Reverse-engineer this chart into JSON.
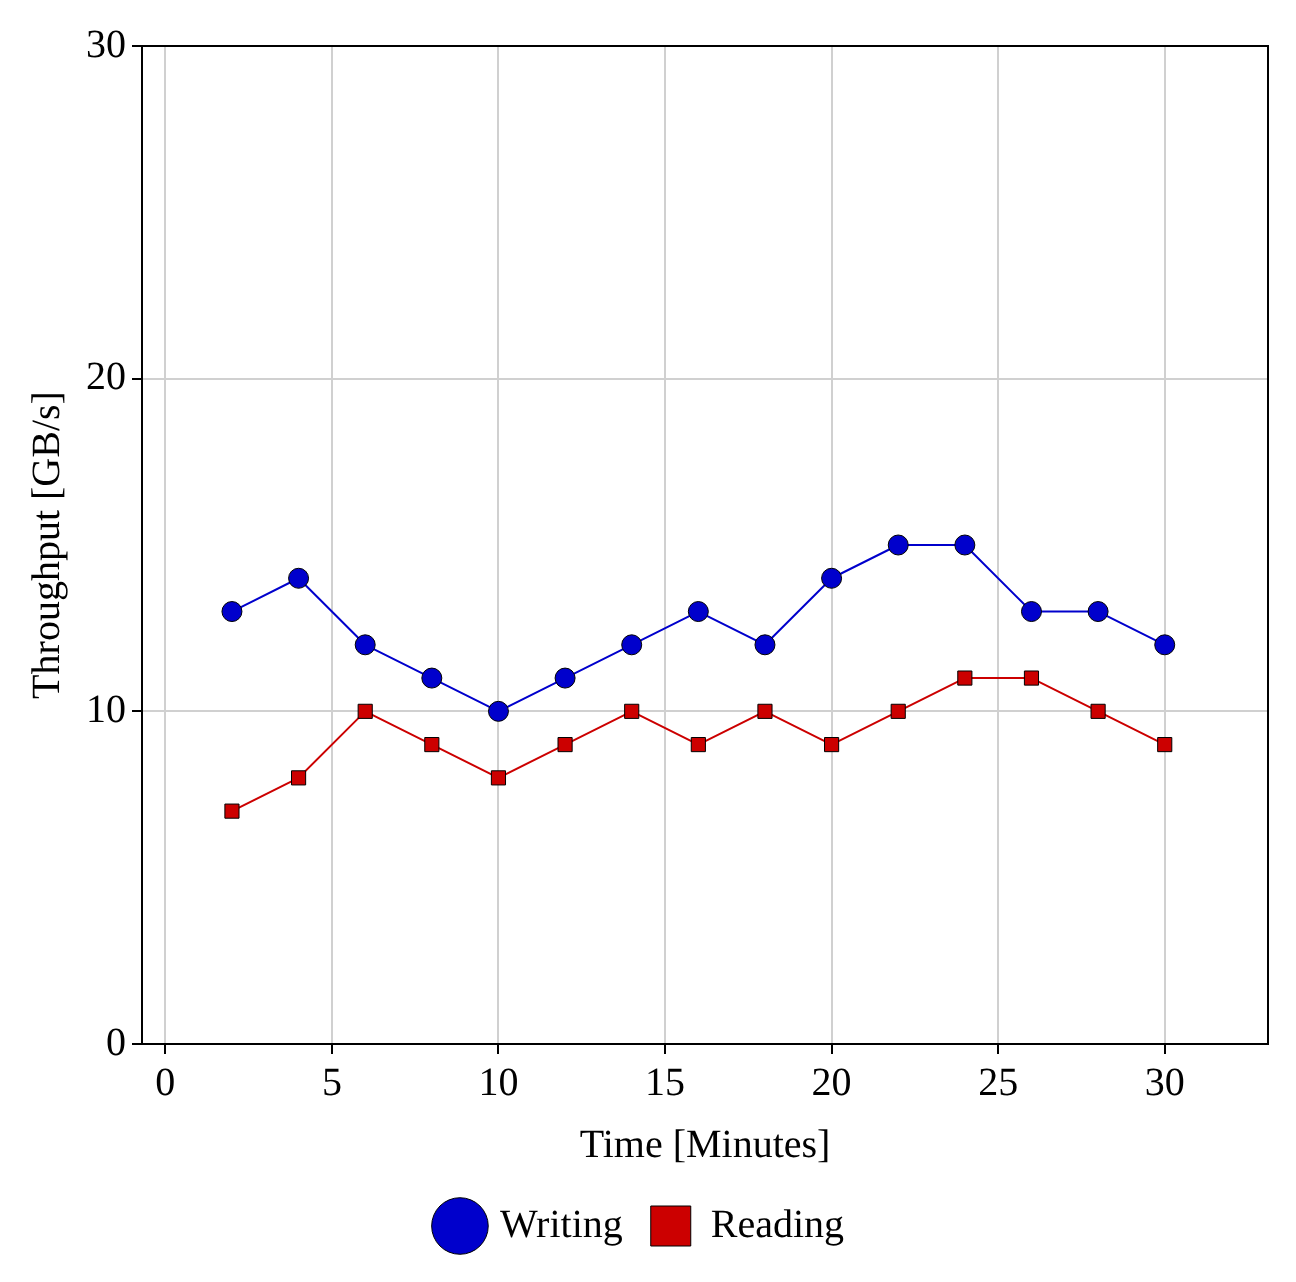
{
  "chart_data": {
    "type": "line",
    "xlabel": "Time [Minutes]",
    "ylabel": "Throughput [GB/s]",
    "x": [
      2,
      4,
      6,
      8,
      10,
      12,
      14,
      16,
      18,
      20,
      22,
      24,
      26,
      28,
      30
    ],
    "series": [
      {
        "name": "Writing",
        "color": "#0000cc",
        "marker": "circle",
        "values": [
          13,
          14,
          12,
          11,
          10,
          11,
          12,
          13,
          12,
          14,
          15,
          15,
          13,
          13,
          12
        ]
      },
      {
        "name": "Reading",
        "color": "#cc0000",
        "marker": "square",
        "values": [
          7,
          8,
          10,
          9,
          8,
          9,
          10,
          9,
          10,
          9,
          10,
          11,
          11,
          10,
          9
        ]
      }
    ],
    "xlim": [
      -0.7,
      33.1
    ],
    "xticks": [
      0,
      5,
      10,
      15,
      20,
      25,
      30
    ],
    "ylim": [
      0,
      30
    ],
    "yticks": [
      0,
      10,
      20,
      30
    ],
    "grid": true,
    "legend": "bottom",
    "line_style": "solid"
  }
}
